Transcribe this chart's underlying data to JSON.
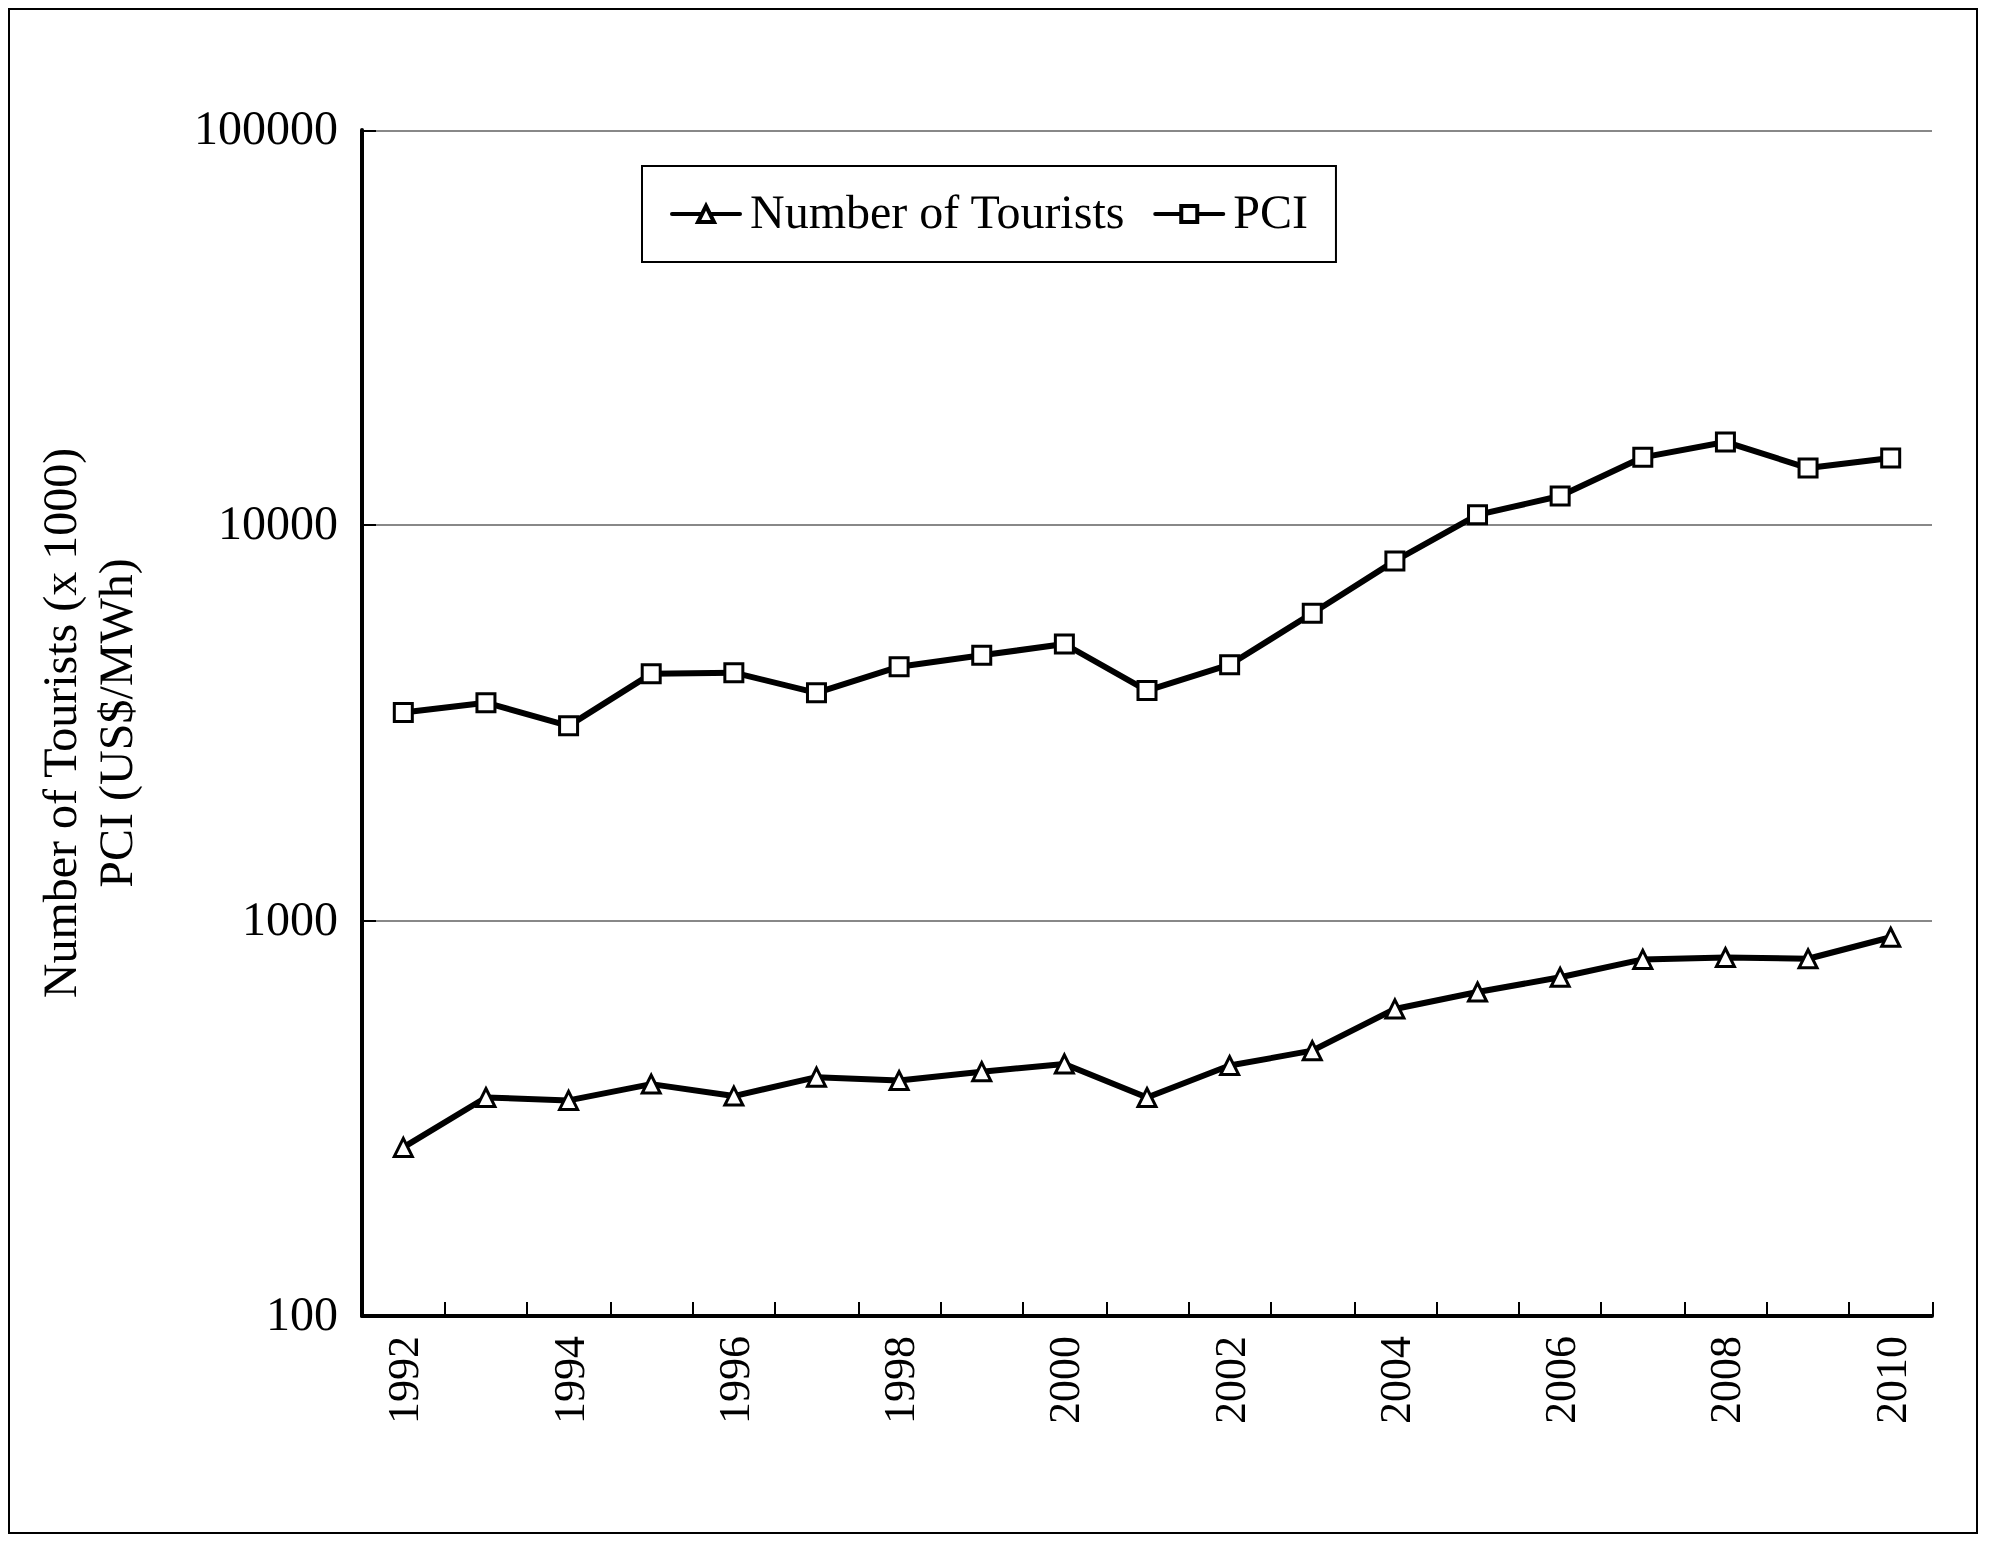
{
  "chart_data": {
    "type": "line",
    "ylabel": "Number of Tourists (x 1000)\nPCI (US$/MWh)",
    "categories": [
      "1992",
      null,
      "1994",
      null,
      "1996",
      null,
      "1998",
      null,
      "2000",
      null,
      "2002",
      null,
      "2004",
      null,
      "2006",
      null,
      "2008",
      null,
      "2010"
    ],
    "series": [
      {
        "name": "Number of Tourists",
        "color": "#000000",
        "marker": "triangle",
        "values": [
          267,
          357,
          351,
          386,
          360,
          402,
          394,
          415,
          434,
          357,
          430,
          469,
          598,
          660,
          719,
          798,
          807,
          801,
          908
        ]
      },
      {
        "name": "PCI",
        "color": "#000000",
        "marker": "square",
        "values": [
          3360,
          3560,
          3110,
          4210,
          4240,
          3770,
          4390,
          4690,
          5010,
          3820,
          4440,
          5990,
          8130,
          10630,
          11860,
          14860,
          16250,
          13960,
          14800
        ]
      }
    ],
    "log": true,
    "ylim": [
      100,
      100000
    ],
    "yticks": [
      100,
      1000,
      10000,
      100000
    ],
    "grid": "y",
    "legend": "top",
    "line_style": "solid"
  }
}
